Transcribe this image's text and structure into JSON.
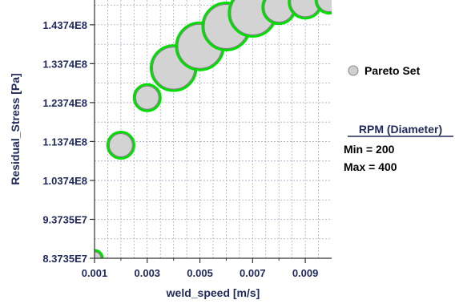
{
  "chart_data": {
    "type": "scatter",
    "xlabel": "weld_speed [m/s]",
    "ylabel": "Residual_Stress [Pa]",
    "x_ticks": [
      0.001,
      0.003,
      0.005,
      0.007,
      0.009
    ],
    "x_tick_labels": [
      "0.001",
      "0.003",
      "0.005",
      "0.007",
      "0.009"
    ],
    "y_ticks": [
      83735000,
      93735000,
      103740000,
      113740000,
      123740000,
      133740000,
      143740000
    ],
    "y_tick_labels": [
      "8.3735E7",
      "9.3735E7",
      "1.0374E8",
      "1.1374E8",
      "1.2374E8",
      "1.3374E8",
      "1.4374E8"
    ],
    "xlim": [
      0.001,
      0.01
    ],
    "ylim": [
      83735000,
      150100000
    ],
    "grid": true,
    "legend_position": "right",
    "series": [
      {
        "name": "Pareto Set",
        "fill": "#d3d3d3",
        "edge": "#00dd00",
        "points": [
          {
            "x": 0.001,
            "y": 83735000,
            "rpm": 200
          },
          {
            "x": 0.002,
            "y": 112800000,
            "rpm": 250
          },
          {
            "x": 0.003,
            "y": 125000000,
            "rpm": 250
          },
          {
            "x": 0.004,
            "y": 132600000,
            "rpm": 340
          },
          {
            "x": 0.005,
            "y": 138200000,
            "rpm": 350
          },
          {
            "x": 0.006,
            "y": 143300000,
            "rpm": 350
          },
          {
            "x": 0.007,
            "y": 146800000,
            "rpm": 350
          },
          {
            "x": 0.008,
            "y": 148200000,
            "rpm": 280
          },
          {
            "x": 0.009,
            "y": 149600000,
            "rpm": 280
          },
          {
            "x": 0.0099,
            "y": 150100000,
            "rpm": 250
          }
        ]
      }
    ],
    "size_legend": {
      "title": "RPM (Diameter)",
      "min_label": "Min = 200",
      "max_label": "Max = 400",
      "min": 200,
      "max": 400
    }
  }
}
